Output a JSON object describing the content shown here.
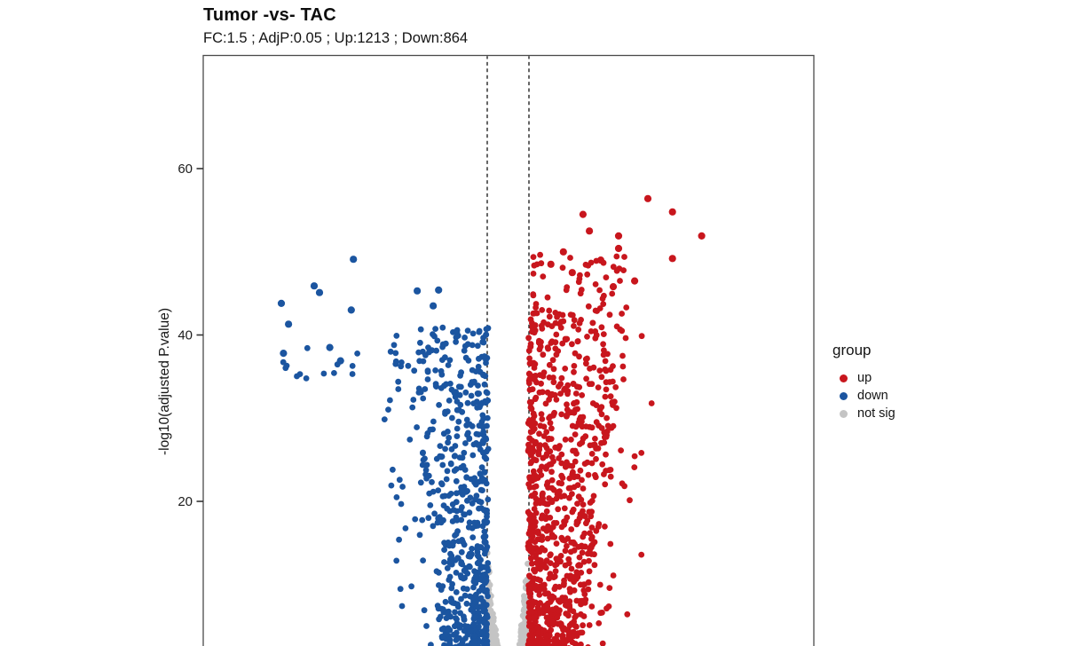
{
  "chart_data": {
    "type": "scatter",
    "subtype": "volcano-plot",
    "title": "Tumor -vs- TAC",
    "subtitle": "FC:1.5 ; AdjP:0.05 ; Up:1213 ; Down:864",
    "xlabel": "",
    "ylabel": "-log10(adjusted P.value)",
    "legend_title": "group",
    "legend_position": "right",
    "grid": false,
    "panel_border": true,
    "x_axis": {
      "range": [
        -8.57,
        8.57
      ],
      "ticks_visible": false
    },
    "y_axis": {
      "ticks": [
        20,
        40,
        60
      ],
      "visible_range": [
        2.6,
        73.6
      ]
    },
    "thresholds": {
      "fold_change": 1.5,
      "log2fc_lines": [
        -0.585,
        0.585
      ],
      "adj_p": 0.05
    },
    "counts": {
      "up": 1213,
      "down": 864
    },
    "series": [
      {
        "name": "up",
        "color": "#C8161D"
      },
      {
        "name": "down",
        "color": "#1B55A0"
      },
      {
        "name": "not sig",
        "color": "#C4C4C4"
      }
    ],
    "point_clouds": [
      {
        "series": "not sig",
        "shape": "wedge",
        "n": 430,
        "x_abs_min": 0.14,
        "x_abs_max": 0.57,
        "y_base": 1.0,
        "y_top": 14.5,
        "curve": 2.0
      },
      {
        "series": "down",
        "shape": "funnel",
        "side": -1,
        "n": 740,
        "x_edge": 0.585,
        "y_min": 0.4,
        "y_max": 41,
        "y_pow": 1.8,
        "width_base": 1.2,
        "width_slope": 0.025,
        "x_pow": 1.5,
        "tail_frac": 0.08,
        "tail_mult": 1.8,
        "dx_max": 2.6
      },
      {
        "series": "up",
        "shape": "funnel",
        "side": 1,
        "n": 980,
        "x_edge": 0.585,
        "y_min": 0.4,
        "y_max": 43,
        "y_pow": 1.7,
        "width_base": 1.4,
        "width_slope": 0.035,
        "x_pow": 1.5,
        "tail_frac": 0.1,
        "tail_mult": 1.7,
        "dx_max": 3.5
      },
      {
        "series": "down",
        "shape": "box",
        "n": 26,
        "x": [
          -3.3,
          -0.75
        ],
        "y": [
          33,
          41
        ],
        "x_bias": 1.3
      },
      {
        "series": "down",
        "shape": "box",
        "n": 13,
        "x": [
          -6.45,
          -4.2
        ],
        "y": [
          33.5,
          38.5
        ],
        "x_bias": 1.0
      },
      {
        "series": "down",
        "shape": "box",
        "n": 14,
        "x": [
          -3.7,
          -1.8
        ],
        "y": [
          20,
          33
        ],
        "x_bias": 1.0
      },
      {
        "series": "up",
        "shape": "box",
        "n": 48,
        "x": [
          0.7,
          3.45
        ],
        "y": [
          41,
          50
        ],
        "x_bias": 1.6
      },
      {
        "series": "up",
        "shape": "box",
        "n": 20,
        "x": [
          2.0,
          3.6
        ],
        "y": [
          14,
          30
        ],
        "x_bias": 1.2
      }
    ],
    "highlight_points": {
      "up": [
        [
          3.92,
          56.4
        ],
        [
          4.61,
          54.8
        ],
        [
          5.43,
          51.9
        ],
        [
          2.1,
          54.5
        ],
        [
          2.28,
          52.5
        ],
        [
          3.1,
          51.9
        ],
        [
          4.61,
          49.2
        ],
        [
          3.1,
          50.4
        ],
        [
          1.55,
          50.0
        ],
        [
          1.2,
          48.5
        ],
        [
          2.6,
          49.0
        ],
        [
          1.8,
          47.5
        ],
        [
          3.55,
          46.5
        ],
        [
          2.95,
          45.8
        ]
      ],
      "down": [
        [
          -4.34,
          49.1
        ],
        [
          -5.29,
          45.1
        ],
        [
          -2.55,
          45.3
        ],
        [
          -6.36,
          43.8
        ],
        [
          -6.16,
          41.3
        ],
        [
          -5.44,
          45.9
        ],
        [
          -4.4,
          43.0
        ],
        [
          -1.95,
          45.4
        ],
        [
          -2.1,
          43.5
        ],
        [
          -5.0,
          38.5
        ],
        [
          -6.3,
          37.8
        ],
        [
          -4.7,
          36.9
        ]
      ]
    }
  }
}
